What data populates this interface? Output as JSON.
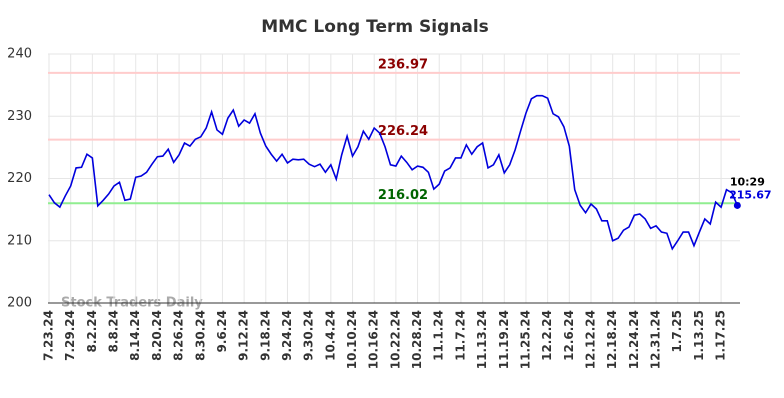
{
  "chart_data": {
    "type": "line",
    "title": "MMC Long Term Signals",
    "watermark": "Stock Traders Daily",
    "last_time": "10:29",
    "color": "#0000dd",
    "categories": [
      "7.23.24",
      null,
      null,
      null,
      "7.29.24",
      null,
      null,
      null,
      "8.2.24",
      null,
      null,
      null,
      "8.8.24",
      null,
      null,
      null,
      "8.14.24",
      null,
      null,
      null,
      "8.20.24",
      null,
      null,
      null,
      "8.26.24",
      null,
      null,
      null,
      "8.30.24",
      null,
      null,
      null,
      "9.6.24",
      null,
      null,
      null,
      "9.12.24",
      null,
      null,
      null,
      "9.18.24",
      null,
      null,
      null,
      "9.24.24",
      null,
      null,
      null,
      "9.30.24",
      null,
      null,
      null,
      "10.4.24",
      null,
      null,
      null,
      "10.10.24",
      null,
      null,
      null,
      "10.16.24",
      null,
      null,
      null,
      "10.22.24",
      null,
      null,
      null,
      "10.28.24",
      null,
      null,
      null,
      "11.1.24",
      null,
      null,
      null,
      "11.7.24",
      null,
      null,
      null,
      "11.13.24",
      null,
      null,
      null,
      "11.19.24",
      null,
      null,
      null,
      "11.25.24",
      null,
      null,
      null,
      "12.2.24",
      null,
      null,
      null,
      "12.6.24",
      null,
      null,
      null,
      "12.12.24",
      null,
      null,
      null,
      "12.18.24",
      null,
      null,
      null,
      "12.24.24",
      null,
      null,
      null,
      "12.31.24",
      null,
      null,
      null,
      "1.7.25",
      null,
      null,
      null,
      "1.13.25",
      null,
      null,
      null,
      "1.17.25",
      null,
      null,
      null
    ],
    "values": [
      217.4,
      216.1,
      215.4,
      217.2,
      218.8,
      221.7,
      221.8,
      223.9,
      223.3,
      215.6,
      216.5,
      217.5,
      218.8,
      219.4,
      216.5,
      216.7,
      220.2,
      220.4,
      221.0,
      222.3,
      223.5,
      223.6,
      224.7,
      222.6,
      223.8,
      225.7,
      225.2,
      226.3,
      226.7,
      228.1,
      230.7,
      227.8,
      227.1,
      229.7,
      231.0,
      228.4,
      229.4,
      228.9,
      230.4,
      227.3,
      225.2,
      223.9,
      222.8,
      223.9,
      222.5,
      223.1,
      223.0,
      223.1,
      222.3,
      221.9,
      222.3,
      221.0,
      222.2,
      219.9,
      223.8,
      226.8,
      223.6,
      225.1,
      227.6,
      226.3,
      228.1,
      227.3,
      225.1,
      222.2,
      222.0,
      223.6,
      222.6,
      221.4,
      222.0,
      221.8,
      221.0,
      218.3,
      219.1,
      221.2,
      221.7,
      223.3,
      223.3,
      225.4,
      223.9,
      225.1,
      225.7,
      221.7,
      222.2,
      223.8,
      220.9,
      222.2,
      224.6,
      227.6,
      230.5,
      232.8,
      233.3,
      233.3,
      232.9,
      230.4,
      229.9,
      228.3,
      225.2,
      218.2,
      215.7,
      214.5,
      215.9,
      215.1,
      213.2,
      213.2,
      210.0,
      210.4,
      211.7,
      212.2,
      214.1,
      214.3,
      213.5,
      212.0,
      212.4,
      211.4,
      211.2,
      208.7,
      210.0,
      211.4,
      211.4,
      209.2,
      211.4,
      213.5,
      212.7,
      216.2,
      215.4,
      218.2,
      217.7,
      215.67
    ],
    "hlines": [
      {
        "value": 236.97,
        "color": "#ffcccc",
        "text_color": "#8b0000"
      },
      {
        "value": 226.24,
        "color": "#ffcccc",
        "text_color": "#8b0000"
      },
      {
        "value": 216.02,
        "color": "#90ee90",
        "text_color": "#006400"
      }
    ],
    "ylim": [
      200,
      240
    ],
    "yticks": [
      200,
      210,
      220,
      230,
      240
    ],
    "grid": true
  }
}
